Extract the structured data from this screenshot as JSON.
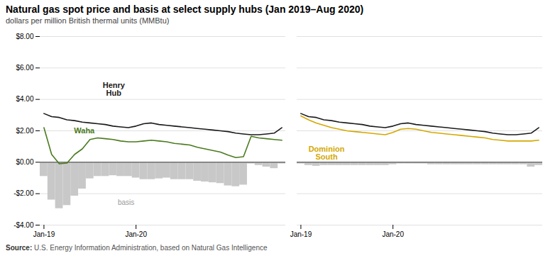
{
  "chart_data": [
    {
      "type": "line",
      "title": "Natural gas spot price and basis at select supply hubs (Jan 2019–Aug 2020)",
      "subtitle": "dollars per million British thermal units (MMBtu)",
      "source": "Source: U.S. Energy Information Administration, based on Natural Gas Intelligence",
      "categories": [
        "Jan-19",
        null,
        null,
        null,
        null,
        null,
        null,
        null,
        null,
        null,
        null,
        null,
        "Jan-20",
        null,
        null,
        null,
        null,
        null,
        null,
        null,
        null,
        null,
        null,
        null,
        null,
        null,
        null,
        null,
        null,
        null,
        null,
        null
      ],
      "ylim": [
        -4.0,
        8.0
      ],
      "yticks": [
        {
          "value": -4.0,
          "label": "-$4.00"
        },
        {
          "value": -2.0,
          "label": "-$2.00"
        },
        {
          "value": 0.0,
          "label": "$0.00"
        },
        {
          "value": 2.0,
          "label": "$2.00"
        },
        {
          "value": 4.0,
          "label": "$4.00"
        },
        {
          "value": 6.0,
          "label": "$6.00"
        },
        {
          "value": 8.0,
          "label": "$8.00"
        }
      ],
      "grid": true,
      "series": [
        {
          "name": "basis",
          "type": "bar",
          "color": "#c8c8c8",
          "values": [
            -0.9,
            -2.4,
            -2.95,
            -2.75,
            -2.15,
            -1.7,
            -1.05,
            -0.9,
            -0.9,
            -0.85,
            -0.9,
            -0.9,
            -1.0,
            -1.1,
            -1.1,
            -1.05,
            -1.0,
            -1.1,
            -1.1,
            -1.1,
            -1.2,
            -1.25,
            -1.3,
            -1.35,
            -1.5,
            -1.55,
            -1.45,
            -0.1,
            -0.2,
            -0.3,
            -0.4,
            -0.1
          ]
        },
        {
          "name": "Henry Hub",
          "type": "line",
          "color": "#1a1a1a",
          "values": [
            3.1,
            2.9,
            2.85,
            2.7,
            2.65,
            2.55,
            2.5,
            2.45,
            2.4,
            2.3,
            2.25,
            2.2,
            2.3,
            2.45,
            2.5,
            2.4,
            2.35,
            2.3,
            2.25,
            2.2,
            2.15,
            2.1,
            2.05,
            2.0,
            1.95,
            1.85,
            1.8,
            1.75,
            1.75,
            1.8,
            1.85,
            2.2
          ]
        },
        {
          "name": "Waha",
          "type": "line",
          "color": "#4a7a1e",
          "values": [
            2.2,
            0.5,
            -0.1,
            -0.05,
            0.5,
            0.85,
            1.45,
            1.55,
            1.5,
            1.45,
            1.35,
            1.3,
            1.3,
            1.35,
            1.4,
            1.35,
            1.3,
            1.2,
            1.15,
            1.1,
            0.95,
            0.85,
            0.75,
            0.65,
            0.45,
            0.3,
            0.35,
            1.65,
            1.55,
            1.5,
            1.45,
            1.4
          ]
        }
      ],
      "annotations": [
        "Henry\nHub",
        "Waha",
        "basis"
      ]
    },
    {
      "type": "line",
      "categories": [
        "Jan-19",
        null,
        null,
        null,
        null,
        null,
        null,
        null,
        null,
        null,
        null,
        null,
        "Jan-20",
        null,
        null,
        null,
        null,
        null,
        null,
        null,
        null,
        null,
        null,
        null,
        null,
        null,
        null,
        null,
        null,
        null,
        null,
        null
      ],
      "ylim": [
        -4.0,
        8.0
      ],
      "yticks": [
        {
          "value": -4.0,
          "label": "-$4.00"
        },
        {
          "value": -2.0,
          "label": "-$2.00"
        },
        {
          "value": 0.0,
          "label": "$0.00"
        },
        {
          "value": 2.0,
          "label": "$2.00"
        },
        {
          "value": 4.0,
          "label": "$4.00"
        },
        {
          "value": 6.0,
          "label": "$6.00"
        },
        {
          "value": 8.0,
          "label": "$8.00"
        }
      ],
      "grid": true,
      "tick_labels": "x",
      "series": [
        {
          "name": "basis",
          "type": "bar",
          "color": "#c8c8c8",
          "values": [
            -0.1,
            -0.2,
            -0.25,
            -0.2,
            -0.2,
            -0.2,
            -0.2,
            -0.2,
            -0.2,
            -0.2,
            -0.2,
            -0.2,
            -0.15,
            -0.1,
            -0.1,
            -0.1,
            -0.1,
            -0.15,
            -0.15,
            -0.15,
            -0.15,
            -0.15,
            -0.15,
            -0.15,
            -0.15,
            -0.15,
            -0.15,
            -0.15,
            -0.15,
            -0.15,
            -0.3,
            -0.2
          ]
        },
        {
          "name": "Henry Hub",
          "type": "line",
          "color": "#1a1a1a",
          "values": [
            3.1,
            2.9,
            2.85,
            2.7,
            2.65,
            2.55,
            2.5,
            2.45,
            2.4,
            2.3,
            2.25,
            2.2,
            2.3,
            2.45,
            2.5,
            2.4,
            2.35,
            2.3,
            2.25,
            2.2,
            2.15,
            2.1,
            2.05,
            2.0,
            1.95,
            1.85,
            1.8,
            1.75,
            1.75,
            1.8,
            1.85,
            2.2
          ]
        },
        {
          "name": "Dominion South",
          "type": "line",
          "color": "#d4a800",
          "values": [
            2.95,
            2.7,
            2.5,
            2.35,
            2.2,
            2.1,
            2.0,
            1.95,
            1.9,
            1.85,
            1.8,
            1.75,
            1.9,
            2.1,
            2.15,
            2.1,
            2.0,
            1.9,
            1.85,
            1.8,
            1.75,
            1.7,
            1.65,
            1.6,
            1.55,
            1.45,
            1.4,
            1.35,
            1.35,
            1.35,
            1.35,
            1.4
          ]
        }
      ],
      "annotations": [
        "Dominion\nSouth"
      ]
    }
  ]
}
